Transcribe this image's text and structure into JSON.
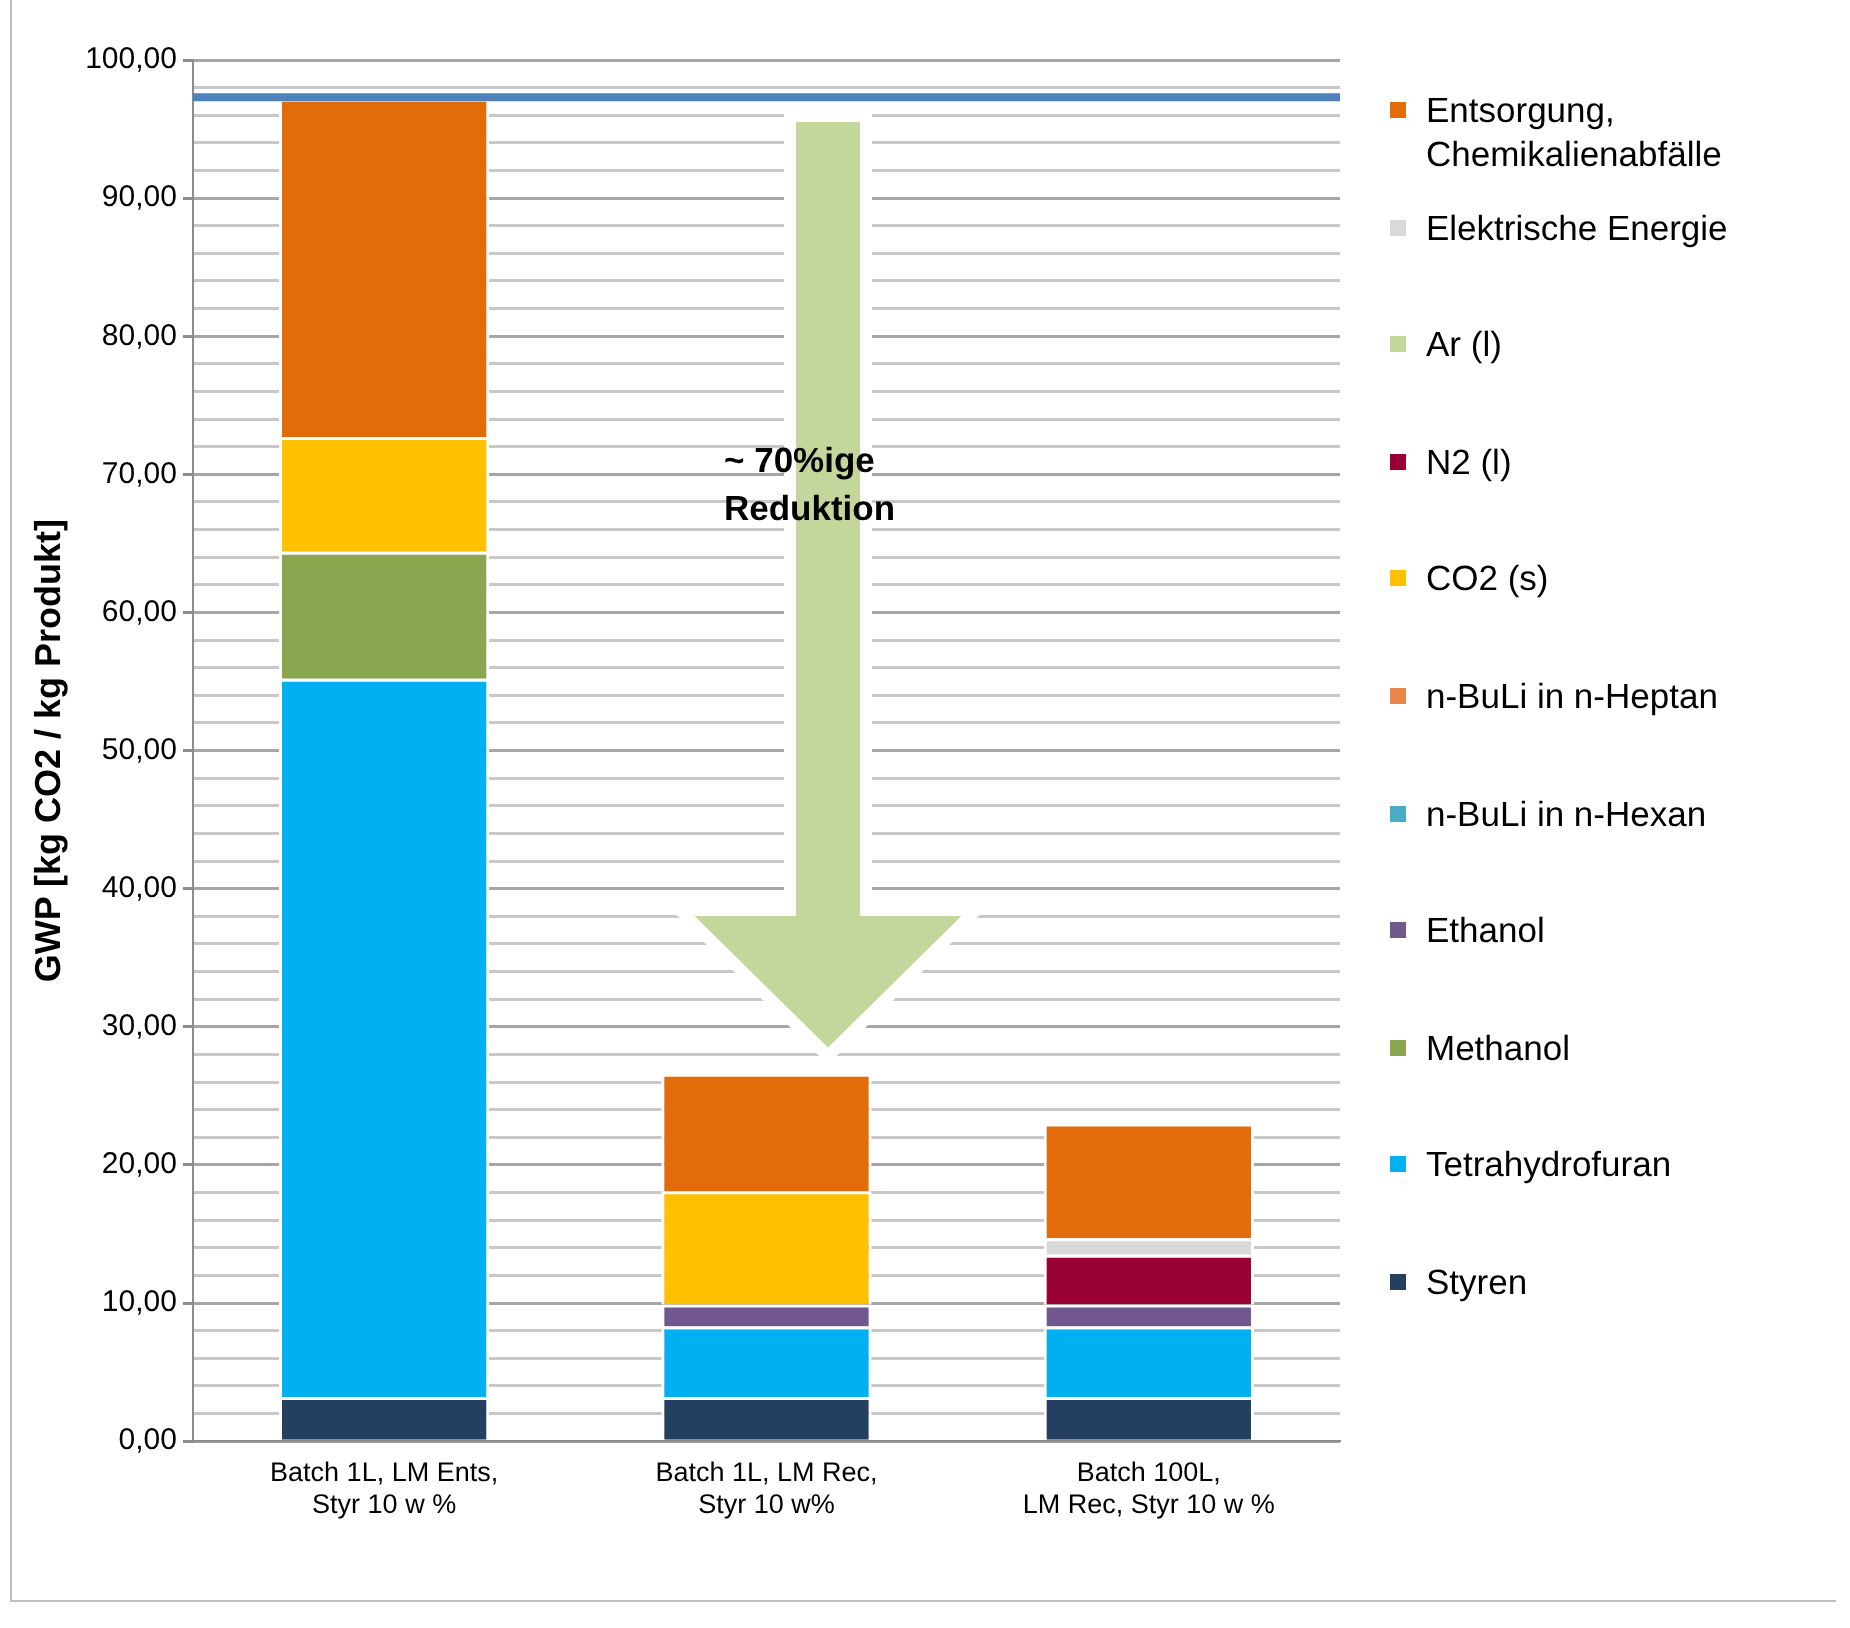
{
  "chart_data": {
    "type": "bar",
    "stacked": true,
    "ylabel": "GWP [kg CO2 / kg Produkt]",
    "categories": [
      "Batch 1L, LM Ents,\nStyr 10 w %",
      "Batch 1L, LM Rec,\nStyr 10 w%",
      "Batch 100L,\nLM Rec, Styr 10 w %"
    ],
    "series": [
      {
        "name": "Styren",
        "color": "#243f60",
        "values": [
          3.2,
          3.2,
          3.2
        ]
      },
      {
        "name": "Tetrahydrofuran",
        "color": "#00b0f0",
        "values": [
          52.0,
          5.1,
          5.1
        ]
      },
      {
        "name": "Methanol",
        "color": "#8aa64f",
        "values": [
          9.2,
          0,
          0
        ]
      },
      {
        "name": "Ethanol",
        "color": "#70588f",
        "values": [
          0,
          1.6,
          1.6
        ]
      },
      {
        "name": "n-BuLi in n-Hexan",
        "color": "#4bacc6",
        "values": [
          0,
          0,
          0
        ]
      },
      {
        "name": "n-BuLi in n-Heptan",
        "color": "#e9874a",
        "values": [
          0,
          0,
          0
        ]
      },
      {
        "name": "CO2 (s)",
        "color": "#ffc000",
        "values": [
          8.3,
          8.2,
          0
        ]
      },
      {
        "name": "N2 (l)",
        "color": "#990033",
        "values": [
          0,
          0,
          3.6
        ]
      },
      {
        "name": "Ar (l)",
        "color": "#c3d69b",
        "values": [
          0,
          0,
          0
        ]
      },
      {
        "name": "Elektrische Energie",
        "color": "#d9d9d9",
        "values": [
          0,
          0,
          1.2
        ]
      },
      {
        "name": "Entsorgung, Chemikalienabfälle",
        "color": "#e36c0a",
        "values": [
          24.5,
          8.5,
          8.3
        ]
      }
    ],
    "ylim": [
      0,
      100
    ],
    "yticks": [
      {
        "value": 0,
        "label": "0,00"
      },
      {
        "value": 2,
        "label": null
      },
      {
        "value": 4,
        "label": null
      },
      {
        "value": 6,
        "label": null
      },
      {
        "value": 8,
        "label": null
      },
      {
        "value": 10,
        "label": "10,00"
      },
      {
        "value": 12,
        "label": null
      },
      {
        "value": 14,
        "label": null
      },
      {
        "value": 16,
        "label": null
      },
      {
        "value": 18,
        "label": null
      },
      {
        "value": 20,
        "label": "20,00"
      },
      {
        "value": 22,
        "label": null
      },
      {
        "value": 24,
        "label": null
      },
      {
        "value": 26,
        "label": null
      },
      {
        "value": 28,
        "label": null
      },
      {
        "value": 30,
        "label": "30,00"
      },
      {
        "value": 32,
        "label": null
      },
      {
        "value": 34,
        "label": null
      },
      {
        "value": 36,
        "label": null
      },
      {
        "value": 38,
        "label": null
      },
      {
        "value": 40,
        "label": "40,00"
      },
      {
        "value": 42,
        "label": null
      },
      {
        "value": 44,
        "label": null
      },
      {
        "value": 46,
        "label": null
      },
      {
        "value": 48,
        "label": null
      },
      {
        "value": 50,
        "label": "50,00"
      },
      {
        "value": 52,
        "label": null
      },
      {
        "value": 54,
        "label": null
      },
      {
        "value": 56,
        "label": null
      },
      {
        "value": 58,
        "label": null
      },
      {
        "value": 60,
        "label": "60,00"
      },
      {
        "value": 62,
        "label": null
      },
      {
        "value": 64,
        "label": null
      },
      {
        "value": 66,
        "label": null
      },
      {
        "value": 68,
        "label": null
      },
      {
        "value": 70,
        "label": "70,00"
      },
      {
        "value": 72,
        "label": null
      },
      {
        "value": 74,
        "label": null
      },
      {
        "value": 76,
        "label": null
      },
      {
        "value": 78,
        "label": null
      },
      {
        "value": 80,
        "label": "80,00"
      },
      {
        "value": 82,
        "label": null
      },
      {
        "value": 84,
        "label": null
      },
      {
        "value": 86,
        "label": null
      },
      {
        "value": 88,
        "label": null
      },
      {
        "value": 90,
        "label": "90,00"
      },
      {
        "value": 92,
        "label": null
      },
      {
        "value": 94,
        "label": null
      },
      {
        "value": 96,
        "label": null
      },
      {
        "value": 98,
        "label": null
      },
      {
        "value": 100,
        "label": "100,00"
      }
    ],
    "grid": "y",
    "legend": "right",
    "ref_lines": [
      {
        "axis": "y",
        "value": 97.3,
        "color": "#4f81bd"
      }
    ],
    "annotations": [
      "~ 70%ige Reduktion"
    ]
  }
}
